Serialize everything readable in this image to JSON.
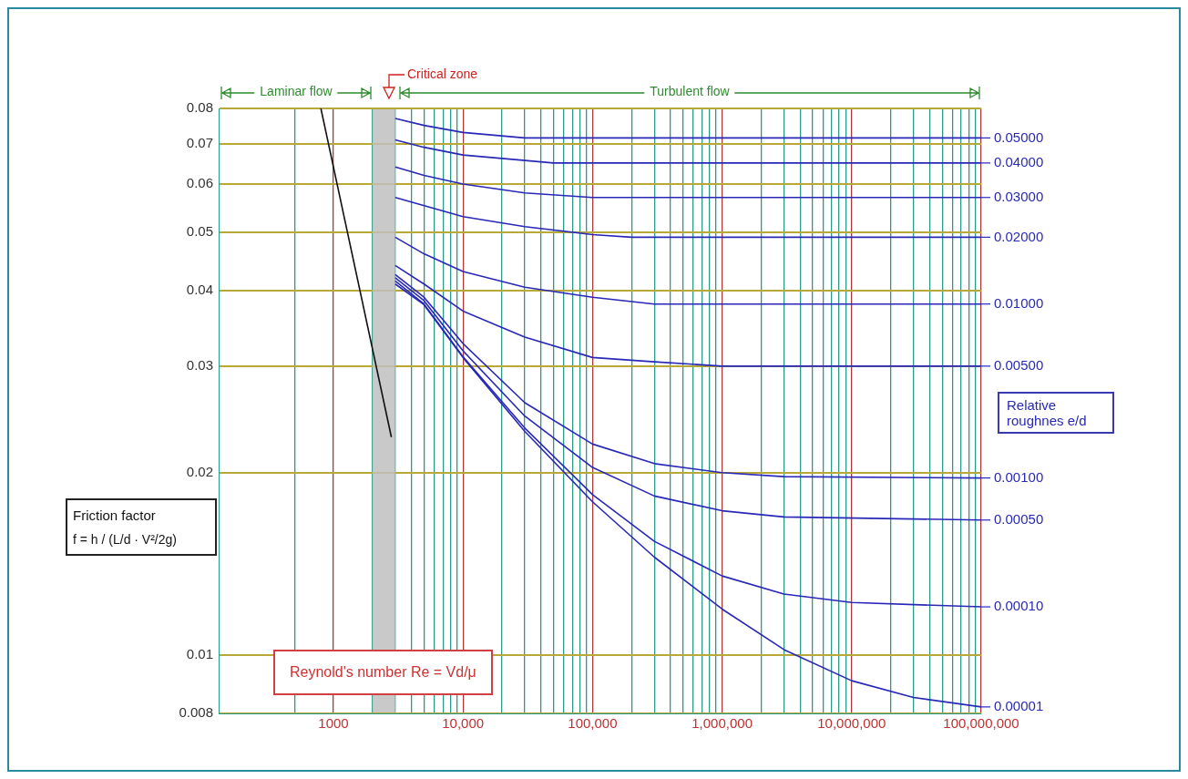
{
  "chart_data": {
    "type": "line",
    "xlabel": "Reynold's number  Re = Vd/μ",
    "ylabel": "Friction factor",
    "y2label": "Relative roughnes e/d",
    "annotations": [
      "f = h / (L/d · V²/2g)",
      "Laminar flow",
      "Critical zone",
      "Turbulent flow"
    ],
    "legend": "right",
    "log": "xy",
    "grid": true,
    "xlim": [
      130,
      100000000
    ],
    "ylim": [
      0.008,
      0.08
    ],
    "xticks": [
      {
        "value": 500,
        "label": null
      },
      1000,
      {
        "value": 2000,
        "label": null
      },
      {
        "value": 3000,
        "label": null
      },
      {
        "value": 4000,
        "label": null
      },
      {
        "value": 5000,
        "label": null
      },
      {
        "value": 6000,
        "label": null
      },
      {
        "value": 7000,
        "label": null
      },
      {
        "value": 8000,
        "label": null
      },
      {
        "value": 9000,
        "label": null
      },
      {
        "value": 10000,
        "label": "10,000"
      },
      {
        "value": 20000,
        "label": null
      },
      {
        "value": 30000,
        "label": null
      },
      {
        "value": 40000,
        "label": null
      },
      {
        "value": 50000,
        "label": null
      },
      {
        "value": 60000,
        "label": null
      },
      {
        "value": 70000,
        "label": null
      },
      {
        "value": 80000,
        "label": null
      },
      {
        "value": 90000,
        "label": null
      },
      {
        "value": 100000,
        "label": "100,000"
      },
      {
        "value": 200000,
        "label": null
      },
      {
        "value": 300000,
        "label": null
      },
      {
        "value": 400000,
        "label": null
      },
      {
        "value": 500000,
        "label": null
      },
      {
        "value": 600000,
        "label": null
      },
      {
        "value": 700000,
        "label": null
      },
      {
        "value": 800000,
        "label": null
      },
      {
        "value": 900000,
        "label": null
      },
      {
        "value": 1000000,
        "label": "1,000,000"
      },
      {
        "value": 2000000,
        "label": null
      },
      {
        "value": 3000000,
        "label": null
      },
      {
        "value": 4000000,
        "label": null
      },
      {
        "value": 5000000,
        "label": null
      },
      {
        "value": 6000000,
        "label": null
      },
      {
        "value": 7000000,
        "label": null
      },
      {
        "value": 8000000,
        "label": null
      },
      {
        "value": 9000000,
        "label": null
      },
      {
        "value": 10000000,
        "label": "10,000,000"
      },
      {
        "value": 20000000,
        "label": null
      },
      {
        "value": 30000000,
        "label": null
      },
      {
        "value": 40000000,
        "label": null
      },
      {
        "value": 50000000,
        "label": null
      },
      {
        "value": 60000000,
        "label": null
      },
      {
        "value": 70000000,
        "label": null
      },
      {
        "value": 80000000,
        "label": null
      },
      {
        "value": 90000000,
        "label": null
      },
      {
        "value": 100000000,
        "label": "100,000,000"
      }
    ],
    "yticks": [
      0.008,
      0.01,
      0.02,
      0.03,
      0.04,
      0.05,
      0.06,
      0.07,
      0.08
    ],
    "bands": [
      {
        "axis": "x",
        "from": 2000,
        "to": 3000,
        "color": "#c0c0c0"
      }
    ],
    "series": [
      {
        "color": "#111111",
        "x": [
          800,
          2800
        ],
        "values": [
          0.08,
          0.0229
        ]
      },
      {
        "name": "0.05000",
        "color": "#2828b8",
        "x": [
          3000,
          5000,
          10000,
          30000,
          100000000
        ],
        "values": [
          0.077,
          0.075,
          0.073,
          0.0715,
          0.0715
        ]
      },
      {
        "name": "0.04000",
        "color": "#2828b8",
        "x": [
          3000,
          5000,
          10000,
          50000,
          100000000
        ],
        "values": [
          0.071,
          0.069,
          0.067,
          0.065,
          0.065
        ]
      },
      {
        "name": "0.03000",
        "color": "#2828b8",
        "x": [
          3000,
          5000,
          10000,
          30000,
          100000,
          100000000
        ],
        "values": [
          0.064,
          0.062,
          0.06,
          0.058,
          0.057,
          0.057
        ]
      },
      {
        "name": "0.02000",
        "color": "#2828b8",
        "x": [
          3000,
          10000,
          30000,
          100000,
          200000,
          100000000
        ],
        "values": [
          0.057,
          0.053,
          0.051,
          0.0495,
          0.049,
          0.049
        ]
      },
      {
        "name": "0.01000",
        "color": "#2828b8",
        "x": [
          3000,
          5000,
          10000,
          30000,
          100000,
          300000,
          100000000
        ],
        "values": [
          0.049,
          0.046,
          0.043,
          0.0405,
          0.039,
          0.038,
          0.038
        ]
      },
      {
        "name": "0.00500",
        "color": "#2828b8",
        "x": [
          3000,
          5000,
          10000,
          30000,
          100000,
          300000,
          1000000,
          100000000
        ],
        "values": [
          0.044,
          0.041,
          0.037,
          0.0335,
          0.031,
          0.0305,
          0.03,
          0.03
        ]
      },
      {
        "name": "0.00100",
        "color": "#2828b8",
        "x": [
          3000,
          5000,
          10000,
          30000,
          100000,
          300000,
          1000000,
          3000000,
          100000000
        ],
        "values": [
          0.0425,
          0.039,
          0.0327,
          0.0261,
          0.0223,
          0.0207,
          0.02,
          0.0197,
          0.0196
        ]
      },
      {
        "name": "0.00050",
        "color": "#2828b8",
        "x": [
          3000,
          5000,
          10000,
          30000,
          100000,
          300000,
          1000000,
          3000000,
          100000000
        ],
        "values": [
          0.042,
          0.0385,
          0.0318,
          0.0248,
          0.0204,
          0.0183,
          0.0173,
          0.0169,
          0.0167
        ]
      },
      {
        "name": "0.00010",
        "color": "#2828b8",
        "x": [
          3000,
          5000,
          10000,
          30000,
          100000,
          300000,
          1000000,
          3000000,
          10000000,
          100000000
        ],
        "values": [
          0.0415,
          0.038,
          0.0311,
          0.0237,
          0.0184,
          0.0154,
          0.0135,
          0.0126,
          0.0122,
          0.012
        ]
      },
      {
        "name": "0.00001",
        "color": "#2828b8",
        "x": [
          3000,
          5000,
          10000,
          30000,
          100000,
          300000,
          1000000,
          3000000,
          10000000,
          30000000,
          100000000
        ],
        "values": [
          0.041,
          0.0379,
          0.031,
          0.0234,
          0.0179,
          0.0145,
          0.0119,
          0.0102,
          0.00906,
          0.0085,
          0.0082
        ]
      }
    ]
  }
}
